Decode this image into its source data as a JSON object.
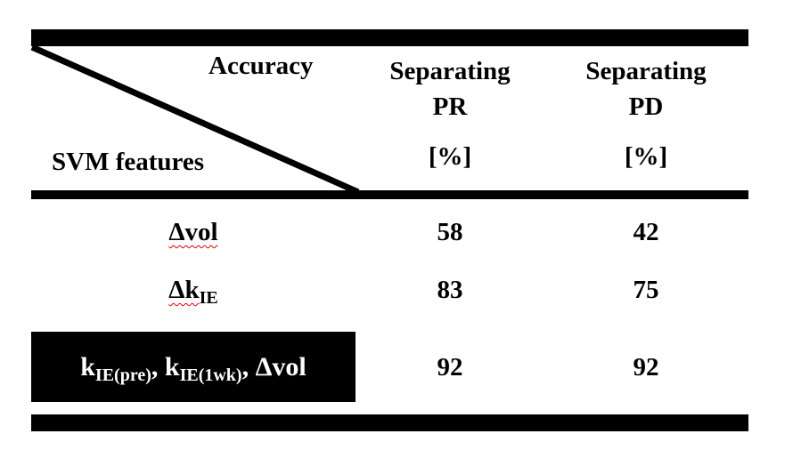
{
  "header": {
    "corner_top": "Accuracy",
    "corner_bottom": "SVM features",
    "columns": [
      {
        "line1": "Separating",
        "line2": "PR",
        "unit": "[%]"
      },
      {
        "line1": "Separating",
        "line2": "PD",
        "unit": "[%]"
      }
    ]
  },
  "rows": [
    {
      "feature": "Δvol",
      "pr": "58",
      "pd": "42"
    },
    {
      "feature_base": "Δk",
      "feature_sub": "IE",
      "pr": "83",
      "pd": "75"
    },
    {
      "k1": "k",
      "k1_sub": "IE(pre)",
      "k2": "k",
      "k2_sub": "IE(1wk)",
      "vol": "Δvol",
      "pr": "92",
      "pd": "92",
      "highlighted": true
    }
  ],
  "colors": {
    "highlight_bg": "#000000",
    "highlight_text": "#ffffff"
  }
}
